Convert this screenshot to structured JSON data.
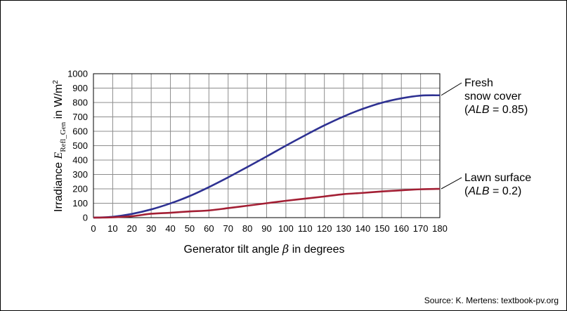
{
  "chart_data": {
    "type": "line",
    "xlabel": {
      "prefix": "Generator tilt angle ",
      "symbol": "β",
      "suffix": " in degrees"
    },
    "ylabel": {
      "prefix": "Irradiance ",
      "symbol": "E",
      "subscript": "Refl_Gen",
      "suffix": " in W/m",
      "superscript": "2"
    },
    "xlim": [
      0,
      180
    ],
    "ylim": [
      0,
      1000
    ],
    "x_ticks": [
      0,
      10,
      20,
      30,
      40,
      50,
      60,
      70,
      80,
      90,
      100,
      110,
      120,
      130,
      140,
      150,
      160,
      170,
      180
    ],
    "y_ticks": [
      0,
      100,
      200,
      300,
      400,
      500,
      600,
      700,
      800,
      900,
      1000
    ],
    "grid": true,
    "x": [
      0,
      10,
      20,
      30,
      40,
      50,
      60,
      70,
      80,
      90,
      100,
      110,
      120,
      130,
      140,
      150,
      160,
      170,
      180
    ],
    "series": [
      {
        "color": "#2e3192",
        "values": [
          0,
          6,
          26,
          57,
          99,
          150,
          212,
          280,
          352,
          425,
          500,
          572,
          641,
          703,
          756,
          799,
          829,
          848,
          850
        ],
        "annotation": {
          "lines": [
            {
              "text": "Fresh"
            },
            {
              "text": "snow cover"
            },
            {
              "text": "(",
              "italic": "ALB",
              "after": " = 0.85)"
            }
          ]
        }
      },
      {
        "color": "#a31f34",
        "values": [
          0,
          2,
          10,
          27,
          34,
          43,
          50,
          66,
          83,
          100,
          117,
          132,
          147,
          163,
          172,
          182,
          190,
          197,
          200
        ],
        "annotation": {
          "lines": [
            {
              "text": "Lawn surface"
            },
            {
              "text": "(",
              "italic": "ALB",
              "after": " = 0.2)"
            }
          ]
        }
      }
    ]
  },
  "source": "Source: K. Mertens: textbook-pv.org"
}
